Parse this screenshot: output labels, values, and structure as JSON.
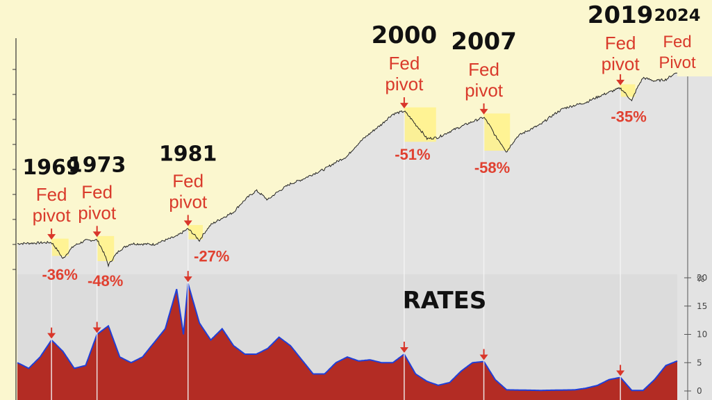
{
  "chart_data": {
    "type": "line",
    "title": "",
    "xlabel": "",
    "ylabel": "",
    "x_range": [
      1966,
      2024
    ],
    "stock_series": {
      "name": "",
      "scale": "log",
      "points": [
        [
          1966,
          1.0
        ],
        [
          1968,
          1.02
        ],
        [
          1969,
          1.03
        ],
        [
          1970,
          0.68
        ],
        [
          1971,
          0.95
        ],
        [
          1972,
          1.08
        ],
        [
          1973,
          1.1
        ],
        [
          1974,
          0.58
        ],
        [
          1975,
          0.85
        ],
        [
          1976,
          1.0
        ],
        [
          1978,
          0.98
        ],
        [
          1980,
          1.2
        ],
        [
          1981,
          1.45
        ],
        [
          1982,
          1.08
        ],
        [
          1983,
          1.6
        ],
        [
          1985,
          2.2
        ],
        [
          1987,
          3.8
        ],
        [
          1988,
          3.0
        ],
        [
          1990,
          4.5
        ],
        [
          1991,
          5.0
        ],
        [
          1993,
          6.5
        ],
        [
          1995,
          9.0
        ],
        [
          1997,
          16.0
        ],
        [
          1998,
          20.0
        ],
        [
          1999,
          26.0
        ],
        [
          2000,
          28.0
        ],
        [
          2001,
          20.0
        ],
        [
          2002,
          14.0
        ],
        [
          2003,
          14.5
        ],
        [
          2005,
          19.0
        ],
        [
          2007,
          24.0
        ],
        [
          2008,
          15.0
        ],
        [
          2009,
          10.0
        ],
        [
          2010,
          15.0
        ],
        [
          2012,
          20.0
        ],
        [
          2014,
          30.0
        ],
        [
          2016,
          35.0
        ],
        [
          2018,
          45.0
        ],
        [
          2019,
          50.0
        ],
        [
          2020,
          36.0
        ],
        [
          2021,
          65.0
        ],
        [
          2022,
          60.0
        ],
        [
          2023,
          62.0
        ],
        [
          2024,
          75.0
        ]
      ]
    },
    "rates_series": {
      "name": "RATES",
      "unit": "%",
      "ylim": [
        0,
        20
      ],
      "ticks": [
        0,
        5,
        10,
        15,
        20
      ],
      "points": [
        [
          1966,
          5.0
        ],
        [
          1967,
          4.0
        ],
        [
          1968,
          6.0
        ],
        [
          1969,
          9.0
        ],
        [
          1970,
          7.0
        ],
        [
          1971,
          4.0
        ],
        [
          1972,
          4.5
        ],
        [
          1973,
          10.0
        ],
        [
          1974,
          11.5
        ],
        [
          1975,
          6.0
        ],
        [
          1976,
          5.0
        ],
        [
          1977,
          6.0
        ],
        [
          1978,
          8.5
        ],
        [
          1979,
          11.0
        ],
        [
          1980,
          18.0
        ],
        [
          1980.6,
          10.0
        ],
        [
          1981,
          19.0
        ],
        [
          1982,
          12.0
        ],
        [
          1983,
          9.0
        ],
        [
          1984,
          11.0
        ],
        [
          1985,
          8.0
        ],
        [
          1986,
          6.5
        ],
        [
          1987,
          6.5
        ],
        [
          1988,
          7.5
        ],
        [
          1989,
          9.5
        ],
        [
          1990,
          8.0
        ],
        [
          1991,
          5.5
        ],
        [
          1992,
          3.0
        ],
        [
          1993,
          3.0
        ],
        [
          1994,
          5.0
        ],
        [
          1995,
          6.0
        ],
        [
          1996,
          5.3
        ],
        [
          1997,
          5.5
        ],
        [
          1998,
          5.0
        ],
        [
          1999,
          5.0
        ],
        [
          2000,
          6.5
        ],
        [
          2001,
          3.0
        ],
        [
          2002,
          1.7
        ],
        [
          2003,
          1.0
        ],
        [
          2004,
          1.5
        ],
        [
          2005,
          3.5
        ],
        [
          2006,
          5.0
        ],
        [
          2007,
          5.2
        ],
        [
          2008,
          2.0
        ],
        [
          2009,
          0.2
        ],
        [
          2012,
          0.1
        ],
        [
          2015,
          0.2
        ],
        [
          2016,
          0.5
        ],
        [
          2017,
          1.0
        ],
        [
          2018,
          2.0
        ],
        [
          2019,
          2.4
        ],
        [
          2020,
          0.1
        ],
        [
          2021,
          0.1
        ],
        [
          2022,
          2.0
        ],
        [
          2023,
          4.5
        ],
        [
          2024,
          5.3
        ]
      ]
    },
    "pivots": [
      {
        "year_label": "1969",
        "label": "Fed\npivot",
        "drawdown": "-36%",
        "year": 1969
      },
      {
        "year_label": "1973",
        "label": "Fed\npivot",
        "drawdown": "-48%",
        "year": 1973
      },
      {
        "year_label": "1981",
        "label": "Fed\npivot",
        "drawdown": "-27%",
        "year": 1981
      },
      {
        "year_label": "2000",
        "label": "Fed\npivot",
        "drawdown": "-51%",
        "year": 2000
      },
      {
        "year_label": "2007",
        "label": "Fed\npivot",
        "drawdown": "-58%",
        "year": 2007
      },
      {
        "year_label": "2019",
        "label": "Fed\npivot",
        "drawdown": "-35%",
        "year": 2019
      },
      {
        "year_label": "2024",
        "label": "Fed\nPivot",
        "drawdown": "",
        "year": 2024
      }
    ],
    "rates_label": "RATES",
    "rates_axis_unit": "%",
    "grid": false
  },
  "colors": {
    "stock_bg": "#fbf7cf",
    "stock_fill": "#e3e3e3",
    "rates_bg": "#dcdcdc",
    "rates_fill": "#b32c24",
    "rates_line": "#1f3fd8",
    "arrow": "#d9362a",
    "highlight": "#fff28a"
  }
}
